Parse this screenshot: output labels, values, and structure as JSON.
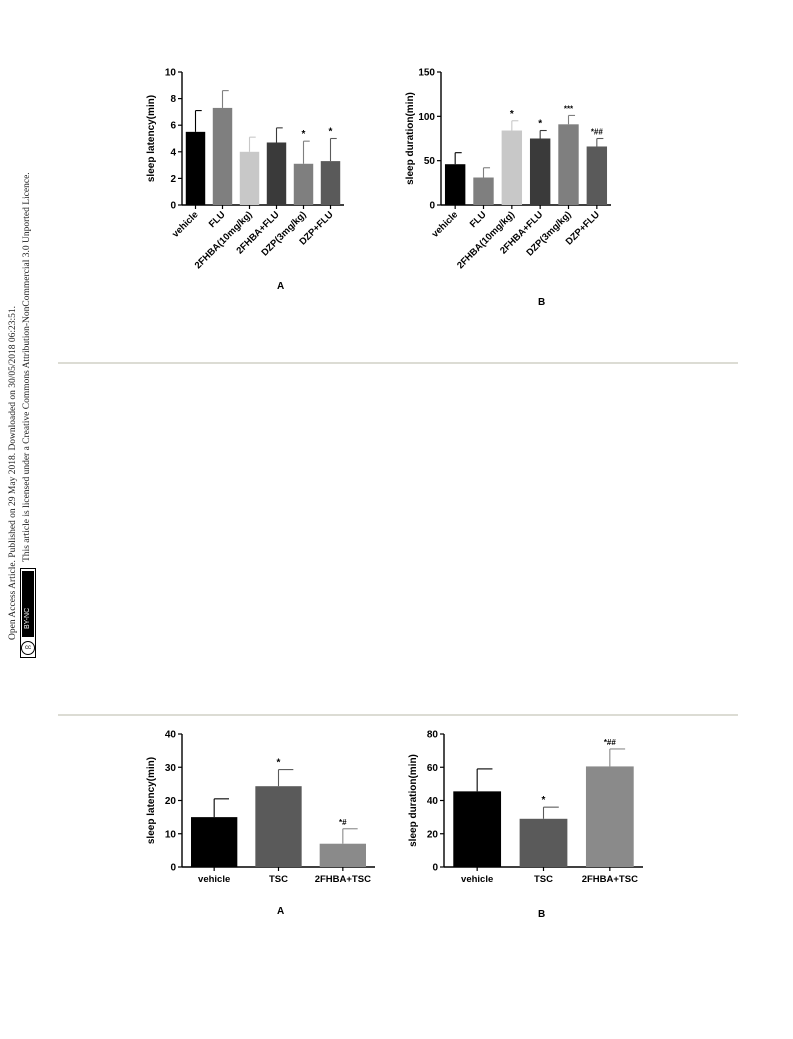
{
  "sidebar": {
    "line1": "Open Access Article. Published on 29 May 2018. Downloaded on 30/05/2018 06:23:51.",
    "line2": "This article is licensed under a Creative Commons Attribution-NonCommercial 3.0 Unported Licence.",
    "badge_cc": "cc",
    "badge_text": "BY-NC"
  },
  "panel_labels": {
    "top_a": "A",
    "top_b": "B",
    "bottom_a": "A",
    "bottom_b": "B"
  },
  "chart_data": [
    {
      "type": "bar",
      "id": "top-a",
      "ylabel": "sleep latency(min)",
      "xlabel": "",
      "title": "",
      "ylim": [
        0,
        10
      ],
      "yticks": [
        0,
        2,
        4,
        6,
        8,
        10
      ],
      "rotate_labels": true,
      "categories": [
        "vehicle",
        "FLU",
        "2FHBA(10mg/kg)",
        "2FHBA+FLU",
        "DZP(3mg/kg)",
        "DZP+FLU"
      ],
      "values": [
        5.5,
        7.3,
        4.0,
        4.7,
        3.1,
        3.3
      ],
      "errors": [
        1.6,
        1.3,
        1.1,
        1.1,
        1.7,
        1.7
      ],
      "annotations": [
        "",
        "",
        "",
        "",
        "*",
        "*"
      ],
      "colors": [
        "#000000",
        "#7f7f7f",
        "#c8c8c8",
        "#3a3a3a",
        "#7f7f7f",
        "#5a5a5a"
      ]
    },
    {
      "type": "bar",
      "id": "top-b",
      "ylabel": "sleep duration(min)",
      "xlabel": "",
      "title": "",
      "ylim": [
        0,
        150
      ],
      "yticks": [
        0,
        50,
        100,
        150
      ],
      "rotate_labels": true,
      "categories": [
        "vehicle",
        "FLU",
        "2FHBA(10mg/kg)",
        "2FHBA+FLU",
        "DZP(3mg/kg)",
        "DZP+FLU"
      ],
      "values": [
        46,
        31,
        84,
        75,
        91,
        66
      ],
      "errors": [
        13,
        11,
        11,
        9,
        10,
        9
      ],
      "annotations": [
        "",
        "",
        "*",
        "*",
        "***",
        "*##"
      ],
      "colors": [
        "#000000",
        "#7f7f7f",
        "#c8c8c8",
        "#3a3a3a",
        "#7f7f7f",
        "#5a5a5a"
      ]
    },
    {
      "type": "bar",
      "id": "bottom-a",
      "ylabel": "sleep latency(min)",
      "xlabel": "",
      "title": "",
      "ylim": [
        0,
        40
      ],
      "yticks": [
        0,
        10,
        20,
        30,
        40
      ],
      "rotate_labels": false,
      "categories": [
        "vehicle",
        "TSC",
        "2FHBA+TSC"
      ],
      "values": [
        15,
        24.3,
        7
      ],
      "errors": [
        5.5,
        5,
        4.5
      ],
      "annotations": [
        "",
        "*",
        "*#"
      ],
      "colors": [
        "#000000",
        "#5a5a5a",
        "#8a8a8a"
      ]
    },
    {
      "type": "bar",
      "id": "bottom-b",
      "ylabel": "sleep duration(min)",
      "xlabel": "",
      "title": "",
      "ylim": [
        0,
        80
      ],
      "yticks": [
        0,
        20,
        40,
        60,
        80
      ],
      "rotate_labels": false,
      "categories": [
        "vehicle",
        "TSC",
        "2FHBA+TSC"
      ],
      "values": [
        45.5,
        29,
        60.5
      ],
      "errors": [
        13.5,
        7,
        10.5
      ],
      "annotations": [
        "",
        "*",
        "*##"
      ],
      "colors": [
        "#000000",
        "#5a5a5a",
        "#8a8a8a"
      ]
    }
  ]
}
